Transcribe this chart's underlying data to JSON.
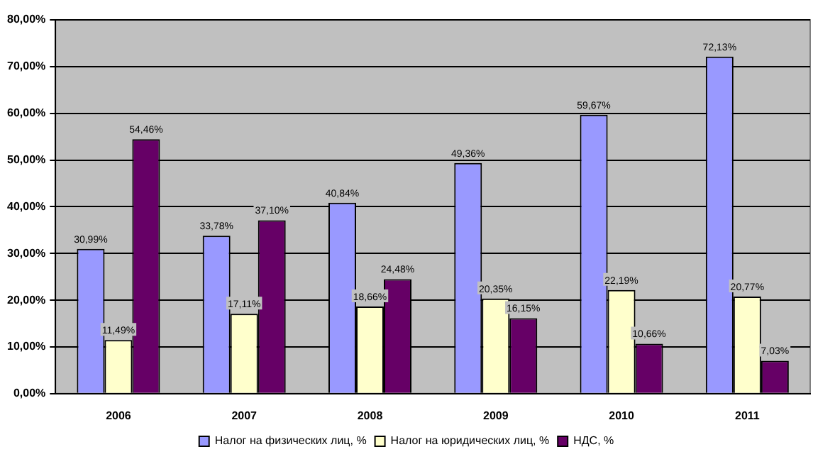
{
  "chart_data": {
    "type": "bar",
    "categories": [
      "2006",
      "2007",
      "2008",
      "2009",
      "2010",
      "2011"
    ],
    "series": [
      {
        "name": "Налог на физических лиц, %",
        "color": "#9999ff",
        "values": [
          30.99,
          33.78,
          40.84,
          49.36,
          59.67,
          72.13
        ],
        "value_labels": [
          "30,99%",
          "33,78%",
          "40,84%",
          "49,36%",
          "59,67%",
          "72,13%"
        ]
      },
      {
        "name": "Налог на юридических лиц, %",
        "color": "#ffffcc",
        "values": [
          11.49,
          17.11,
          18.66,
          20.35,
          22.19,
          20.77
        ],
        "value_labels": [
          "11,49%",
          "17,11%",
          "18,66%",
          "20,35%",
          "22,19%",
          "20,77%"
        ]
      },
      {
        "name": "НДС, %",
        "color": "#660066",
        "values": [
          54.46,
          37.1,
          24.48,
          16.15,
          10.66,
          7.03
        ],
        "value_labels": [
          "54,46%",
          "37,10%",
          "24,48%",
          "16,15%",
          "10,66%",
          "7,03%"
        ]
      }
    ],
    "ylim": [
      0,
      80
    ],
    "yticks": [
      {
        "value": 0,
        "label": "0,00%"
      },
      {
        "value": 10,
        "label": "10,00%"
      },
      {
        "value": 20,
        "label": "20,00%"
      },
      {
        "value": 30,
        "label": "30,00%"
      },
      {
        "value": 40,
        "label": "40,00%"
      },
      {
        "value": 50,
        "label": "50,00%"
      },
      {
        "value": 60,
        "label": "60,00%"
      },
      {
        "value": 70,
        "label": "70,00%"
      },
      {
        "value": 80,
        "label": "80,00%"
      }
    ],
    "grid": "y",
    "legend": "bottom"
  }
}
